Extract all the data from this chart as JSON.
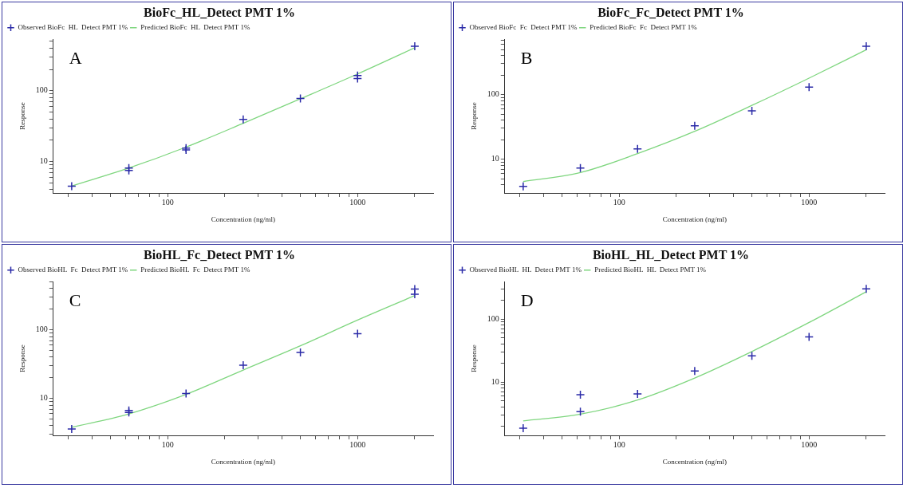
{
  "chart_data": [
    {
      "type": "scatter",
      "title": "BioFc_HL_Detect PMT 1%",
      "xlabel": "Concentration (ng/ml)",
      "ylabel": "Response",
      "annotations": [
        "A"
      ],
      "log": "xy",
      "grid": false,
      "legend": "top left",
      "xlim": [
        25,
        2500
      ],
      "xticks": [
        {
          "value": 30,
          "label": null
        },
        {
          "value": 40,
          "label": null
        },
        {
          "value": 50,
          "label": null
        },
        {
          "value": 60,
          "label": null
        },
        {
          "value": 70,
          "label": null
        },
        {
          "value": 80,
          "label": null
        },
        {
          "value": 90,
          "label": null
        },
        {
          "value": 100,
          "label": "100"
        },
        {
          "value": 200,
          "label": null
        },
        {
          "value": 300,
          "label": null
        },
        {
          "value": 400,
          "label": null
        },
        {
          "value": 500,
          "label": null
        },
        {
          "value": 600,
          "label": null
        },
        {
          "value": 700,
          "label": null
        },
        {
          "value": 800,
          "label": null
        },
        {
          "value": 900,
          "label": null
        },
        {
          "value": 1000,
          "label": "1000"
        },
        {
          "value": 2000,
          "label": null
        }
      ],
      "ylim": [
        3.6,
        535
      ],
      "yticks": [
        {
          "value": 4,
          "label": null
        },
        {
          "value": 5,
          "label": null
        },
        {
          "value": 6,
          "label": null
        },
        {
          "value": 7,
          "label": null
        },
        {
          "value": 8,
          "label": null
        },
        {
          "value": 9,
          "label": null
        },
        {
          "value": 10,
          "label": "10"
        },
        {
          "value": 20,
          "label": null
        },
        {
          "value": 30,
          "label": null
        },
        {
          "value": 40,
          "label": null
        },
        {
          "value": 50,
          "label": null
        },
        {
          "value": 60,
          "label": null
        },
        {
          "value": 70,
          "label": null
        },
        {
          "value": 80,
          "label": null
        },
        {
          "value": 90,
          "label": null
        },
        {
          "value": 100,
          "label": "100"
        },
        {
          "value": 200,
          "label": null
        },
        {
          "value": 300,
          "label": null
        },
        {
          "value": 400,
          "label": null
        },
        {
          "value": 500,
          "label": null
        }
      ],
      "series": [
        {
          "name": "Observed BioFc  HL  Detect PMT 1%",
          "type": "scatter",
          "marker": "cross",
          "color": "#2b2ba8",
          "x": [
            31.25,
            62.5,
            62.5,
            125,
            125,
            250,
            500,
            1000,
            1000,
            2000
          ],
          "values": [
            4.5,
            8.1,
            7.5,
            15.5,
            14.6,
            39.5,
            78,
            164,
            149,
            425
          ]
        },
        {
          "name": "Predicted BioFc  HL  Detect PMT 1%",
          "type": "line",
          "marker": "none",
          "color": "#7fd67f",
          "x": [
            31.25,
            62.5,
            125,
            250,
            500,
            1000,
            2000
          ],
          "values": [
            4.5,
            8.1,
            16,
            34.7,
            77,
            173,
            405
          ]
        }
      ]
    },
    {
      "type": "scatter",
      "title": "BioFc_Fc_Detect PMT 1%",
      "xlabel": "Concentration (ng/ml)",
      "ylabel": "Response",
      "annotations": [
        "B"
      ],
      "log": "xy",
      "grid": false,
      "legend": "top left",
      "xlim": [
        25,
        2500
      ],
      "xticks": [
        {
          "value": 30,
          "label": null
        },
        {
          "value": 40,
          "label": null
        },
        {
          "value": 50,
          "label": null
        },
        {
          "value": 60,
          "label": null
        },
        {
          "value": 70,
          "label": null
        },
        {
          "value": 80,
          "label": null
        },
        {
          "value": 90,
          "label": null
        },
        {
          "value": 100,
          "label": "100"
        },
        {
          "value": 200,
          "label": null
        },
        {
          "value": 300,
          "label": null
        },
        {
          "value": 400,
          "label": null
        },
        {
          "value": 500,
          "label": null
        },
        {
          "value": 600,
          "label": null
        },
        {
          "value": 700,
          "label": null
        },
        {
          "value": 800,
          "label": null
        },
        {
          "value": 900,
          "label": null
        },
        {
          "value": 1000,
          "label": "1000"
        },
        {
          "value": 2000,
          "label": null
        }
      ],
      "ylim": [
        3,
        720
      ],
      "yticks": [
        {
          "value": 4,
          "label": null
        },
        {
          "value": 5,
          "label": null
        },
        {
          "value": 6,
          "label": null
        },
        {
          "value": 7,
          "label": null
        },
        {
          "value": 8,
          "label": null
        },
        {
          "value": 9,
          "label": null
        },
        {
          "value": 10,
          "label": "10"
        },
        {
          "value": 20,
          "label": null
        },
        {
          "value": 30,
          "label": null
        },
        {
          "value": 40,
          "label": null
        },
        {
          "value": 50,
          "label": null
        },
        {
          "value": 60,
          "label": null
        },
        {
          "value": 70,
          "label": null
        },
        {
          "value": 80,
          "label": null
        },
        {
          "value": 90,
          "label": null
        },
        {
          "value": 100,
          "label": "100"
        },
        {
          "value": 200,
          "label": null
        },
        {
          "value": 300,
          "label": null
        },
        {
          "value": 400,
          "label": null
        },
        {
          "value": 500,
          "label": null
        },
        {
          "value": 600,
          "label": null
        },
        {
          "value": 700,
          "label": null
        }
      ],
      "series": [
        {
          "name": "Observed BioFc  Fc  Detect PMT 1%",
          "type": "scatter",
          "marker": "cross",
          "color": "#2b2ba8",
          "x": [
            31.25,
            62.5,
            125,
            250,
            500,
            1000,
            2000
          ],
          "values": [
            3.8,
            7.3,
            14.4,
            33,
            56,
            131,
            560
          ]
        },
        {
          "name": "Predicted BioFc  Fc  Detect PMT 1%",
          "type": "line",
          "marker": "none",
          "color": "#7fd67f",
          "x": [
            31.25,
            62.5,
            125,
            250,
            500,
            1000,
            2000
          ],
          "values": [
            4.5,
            6.2,
            12.2,
            27,
            68,
            180,
            495
          ]
        }
      ]
    },
    {
      "type": "scatter",
      "title": "BioHL_Fc_Detect PMT 1%",
      "xlabel": "Concentration (ng/ml)",
      "ylabel": "Response",
      "annotations": [
        "C"
      ],
      "log": "xy",
      "grid": false,
      "legend": "top left",
      "xlim": [
        25,
        2500
      ],
      "xticks": [
        {
          "value": 30,
          "label": null
        },
        {
          "value": 40,
          "label": null
        },
        {
          "value": 50,
          "label": null
        },
        {
          "value": 60,
          "label": null
        },
        {
          "value": 70,
          "label": null
        },
        {
          "value": 80,
          "label": null
        },
        {
          "value": 90,
          "label": null
        },
        {
          "value": 100,
          "label": "100"
        },
        {
          "value": 200,
          "label": null
        },
        {
          "value": 300,
          "label": null
        },
        {
          "value": 400,
          "label": null
        },
        {
          "value": 500,
          "label": null
        },
        {
          "value": 600,
          "label": null
        },
        {
          "value": 700,
          "label": null
        },
        {
          "value": 800,
          "label": null
        },
        {
          "value": 900,
          "label": null
        },
        {
          "value": 1000,
          "label": "1000"
        },
        {
          "value": 2000,
          "label": null
        }
      ],
      "ylim": [
        2.9,
        505
      ],
      "yticks": [
        {
          "value": 3,
          "label": null
        },
        {
          "value": 4,
          "label": null
        },
        {
          "value": 5,
          "label": null
        },
        {
          "value": 6,
          "label": null
        },
        {
          "value": 7,
          "label": null
        },
        {
          "value": 8,
          "label": null
        },
        {
          "value": 9,
          "label": null
        },
        {
          "value": 10,
          "label": "10"
        },
        {
          "value": 20,
          "label": null
        },
        {
          "value": 30,
          "label": null
        },
        {
          "value": 40,
          "label": null
        },
        {
          "value": 50,
          "label": null
        },
        {
          "value": 60,
          "label": null
        },
        {
          "value": 70,
          "label": null
        },
        {
          "value": 80,
          "label": null
        },
        {
          "value": 90,
          "label": null
        },
        {
          "value": 100,
          "label": "100"
        },
        {
          "value": 200,
          "label": null
        },
        {
          "value": 300,
          "label": null
        },
        {
          "value": 400,
          "label": null
        },
        {
          "value": 500,
          "label": null
        }
      ],
      "series": [
        {
          "name": "Observed BioHL  Fc  Detect PMT 1%",
          "type": "scatter",
          "marker": "cross",
          "color": "#2b2ba8",
          "x": [
            31.25,
            62.5,
            62.5,
            125,
            250,
            500,
            1000,
            2000,
            2000
          ],
          "values": [
            3.6,
            6.7,
            6.25,
            11.8,
            30.6,
            47,
            88,
            394,
            330
          ]
        },
        {
          "name": "Predicted BioHL  Fc  Detect PMT 1%",
          "type": "line",
          "marker": "none",
          "color": "#7fd67f",
          "x": [
            31.25,
            62.5,
            125,
            250,
            500,
            1000,
            2000
          ],
          "values": [
            3.8,
            5.96,
            11.5,
            26,
            58.6,
            139,
            316
          ]
        }
      ]
    },
    {
      "type": "scatter",
      "title": "BioHL_HL_Detect PMT 1%",
      "xlabel": "Concentration (ng/ml)",
      "ylabel": "Response",
      "annotations": [
        "D"
      ],
      "log": "xy",
      "grid": false,
      "legend": "top left",
      "xlim": [
        25,
        2500
      ],
      "xticks": [
        {
          "value": 30,
          "label": null
        },
        {
          "value": 40,
          "label": null
        },
        {
          "value": 50,
          "label": null
        },
        {
          "value": 60,
          "label": null
        },
        {
          "value": 70,
          "label": null
        },
        {
          "value": 80,
          "label": null
        },
        {
          "value": 90,
          "label": null
        },
        {
          "value": 100,
          "label": "100"
        },
        {
          "value": 200,
          "label": null
        },
        {
          "value": 300,
          "label": null
        },
        {
          "value": 400,
          "label": null
        },
        {
          "value": 500,
          "label": null
        },
        {
          "value": 600,
          "label": null
        },
        {
          "value": 700,
          "label": null
        },
        {
          "value": 800,
          "label": null
        },
        {
          "value": 900,
          "label": null
        },
        {
          "value": 1000,
          "label": "1000"
        },
        {
          "value": 2000,
          "label": null
        }
      ],
      "ylim": [
        1.43,
        391
      ],
      "yticks": [
        {
          "value": 2,
          "label": null
        },
        {
          "value": 3,
          "label": null
        },
        {
          "value": 4,
          "label": null
        },
        {
          "value": 5,
          "label": null
        },
        {
          "value": 6,
          "label": null
        },
        {
          "value": 7,
          "label": null
        },
        {
          "value": 8,
          "label": null
        },
        {
          "value": 9,
          "label": null
        },
        {
          "value": 10,
          "label": "10"
        },
        {
          "value": 20,
          "label": null
        },
        {
          "value": 30,
          "label": null
        },
        {
          "value": 40,
          "label": null
        },
        {
          "value": 50,
          "label": null
        },
        {
          "value": 60,
          "label": null
        },
        {
          "value": 70,
          "label": null
        },
        {
          "value": 80,
          "label": null
        },
        {
          "value": 90,
          "label": null
        },
        {
          "value": 100,
          "label": "100"
        },
        {
          "value": 200,
          "label": null
        },
        {
          "value": 300,
          "label": null
        }
      ],
      "series": [
        {
          "name": "Observed BioHL  HL  Detect PMT 1%",
          "type": "scatter",
          "marker": "cross",
          "color": "#2b2ba8",
          "x": [
            31.25,
            62.5,
            62.5,
            125,
            250,
            500,
            1000,
            2000
          ],
          "values": [
            1.86,
            6.3,
            3.4,
            6.5,
            15,
            26,
            52,
            300
          ]
        },
        {
          "name": "Predicted BioHL  HL  Detect PMT 1%",
          "type": "line",
          "marker": "none",
          "color": "#7fd67f",
          "x": [
            31.25,
            62.5,
            125,
            250,
            500,
            1000,
            2000
          ],
          "values": [
            2.43,
            3.1,
            5.2,
            11.6,
            30.5,
            88,
            270
          ]
        }
      ]
    }
  ]
}
